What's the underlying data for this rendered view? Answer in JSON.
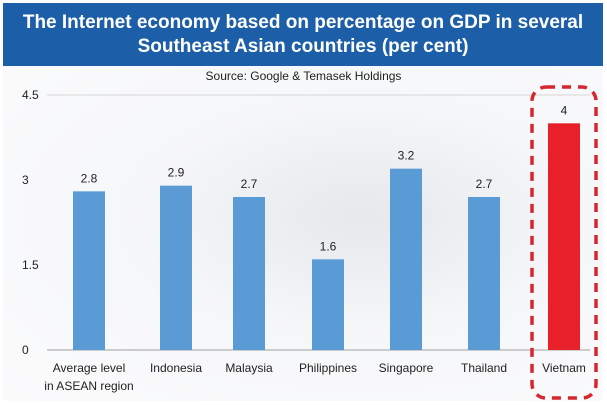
{
  "chart_data": {
    "type": "bar",
    "title": "The Internet economy based on percentage on GDP in several Southeast Asian countries (per cent)",
    "title_lines": [
      "The Internet economy based on percentage on GDP in several",
      "Southeast Asian countries (per cent)"
    ],
    "subtitle": "Source: Google & Temasek Holdings",
    "categories": [
      [
        "Average level",
        "in ASEAN region"
      ],
      [
        "Indonesia"
      ],
      [
        "Malaysia"
      ],
      [
        "Philippines"
      ],
      [
        "Singapore"
      ],
      [
        "Thailand"
      ],
      [
        "Vietnam"
      ]
    ],
    "values": [
      2.8,
      2.9,
      2.7,
      1.6,
      3.2,
      2.7,
      4
    ],
    "value_labels": [
      "2.8",
      "2.9",
      "2.7",
      "1.6",
      "3.2",
      "2.7",
      "4"
    ],
    "yticks": [
      0,
      1.5,
      3,
      4.5
    ],
    "ytick_labels": [
      "0",
      "1.5",
      "3",
      "4.5"
    ],
    "ylim": [
      0,
      4.5
    ],
    "xlabel": "",
    "ylabel": "",
    "grid": false,
    "highlight": "Vietnam",
    "colors": {
      "bar": "#5b9bd5",
      "highlight_bar": "#e8202a",
      "highlight_box": "#d62630",
      "header": "#1c5ea8"
    }
  }
}
